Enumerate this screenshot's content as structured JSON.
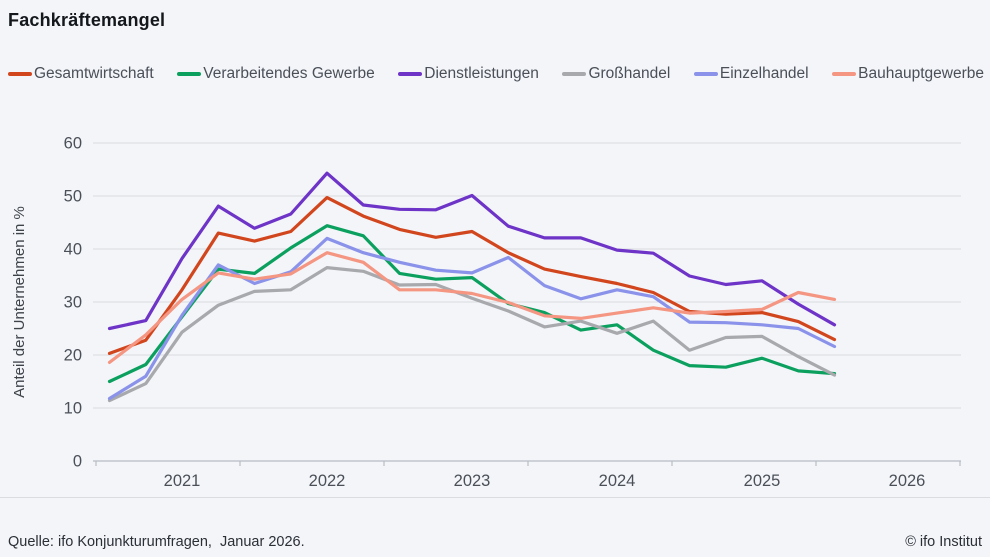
{
  "title": "Fachkräftemangel",
  "footer": {
    "source": "Quelle: ifo Konjunkturumfragen,  Januar 2026.",
    "copyright": "© ifo Institut"
  },
  "chart_data": {
    "type": "line",
    "x": [
      "Jan 2021",
      "Apr 2021",
      "Jul 2021",
      "Okt 2021",
      "Jan 2022",
      "Apr 2022",
      "Jul 2022",
      "Okt 2022",
      "Jan 2023",
      "Apr 2023",
      "Jul 2023",
      "Okt 2023",
      "Jan 2024",
      "Apr 2024",
      "Jul 2024",
      "Okt 2024",
      "Jan 2025",
      "Apr 2025",
      "Jul 2025",
      "Okt 2025",
      "Jan 2026"
    ],
    "series": [
      {
        "name": "Gesamtwirtschaft",
        "color": "#d2461e",
        "values": [
          20.3,
          22.8,
          32.3,
          43.0,
          41.5,
          43.3,
          49.7,
          46.2,
          43.7,
          42.2,
          43.3,
          39.3,
          36.2,
          34.8,
          33.5,
          31.8,
          28.2,
          27.7,
          28.0,
          26.3,
          22.9
        ]
      },
      {
        "name": "Verarbeitendes Gewerbe",
        "color": "#0ca05f",
        "values": [
          15.0,
          18.2,
          27.2,
          36.2,
          35.4,
          40.2,
          44.4,
          42.5,
          35.4,
          34.3,
          34.6,
          29.7,
          28.0,
          24.7,
          25.7,
          20.9,
          18.0,
          17.7,
          19.4,
          17.0,
          16.5
        ]
      },
      {
        "name": "Dienstleistungen",
        "color": "#6e33c7",
        "values": [
          25.0,
          26.5,
          38.2,
          48.1,
          43.9,
          46.6,
          54.3,
          48.3,
          47.5,
          47.4,
          50.1,
          44.3,
          42.1,
          42.1,
          39.8,
          39.2,
          34.9,
          33.3,
          34.0,
          29.6,
          25.7
        ]
      },
      {
        "name": "Großhandel",
        "color": "#a7a9ad",
        "values": [
          11.4,
          14.6,
          24.3,
          29.4,
          32.0,
          32.3,
          36.5,
          35.8,
          33.2,
          33.3,
          30.7,
          28.3,
          25.3,
          26.4,
          24.1,
          26.4,
          20.9,
          23.3,
          23.5,
          19.7,
          16.2
        ]
      },
      {
        "name": "Einzelhandel",
        "color": "#8a93e9",
        "values": [
          11.8,
          16.0,
          27.5,
          37.0,
          33.5,
          35.7,
          42.0,
          39.3,
          37.5,
          36.0,
          35.5,
          38.4,
          33.1,
          30.6,
          32.3,
          31.0,
          26.2,
          26.1,
          25.7,
          25.0,
          21.6
        ]
      },
      {
        "name": "Bauhauptgewerbe",
        "color": "#f49682",
        "values": [
          18.6,
          23.8,
          30.5,
          35.5,
          34.3,
          35.3,
          39.3,
          37.5,
          32.3,
          32.3,
          31.6,
          29.9,
          27.4,
          26.9,
          27.9,
          28.9,
          27.9,
          28.2,
          28.6,
          31.8,
          30.5
        ]
      }
    ],
    "title": "Fachkräftemangel",
    "xlabel": "",
    "ylabel": "Anteil der Unternehmen in %",
    "ylim": [
      0,
      60
    ],
    "yticks": [
      0,
      10,
      20,
      30,
      40,
      50,
      60
    ],
    "xticklabels": [
      "2021",
      "2022",
      "2023",
      "2024",
      "2025",
      "2026"
    ],
    "grid": "horizontal",
    "legend_position": "top"
  }
}
